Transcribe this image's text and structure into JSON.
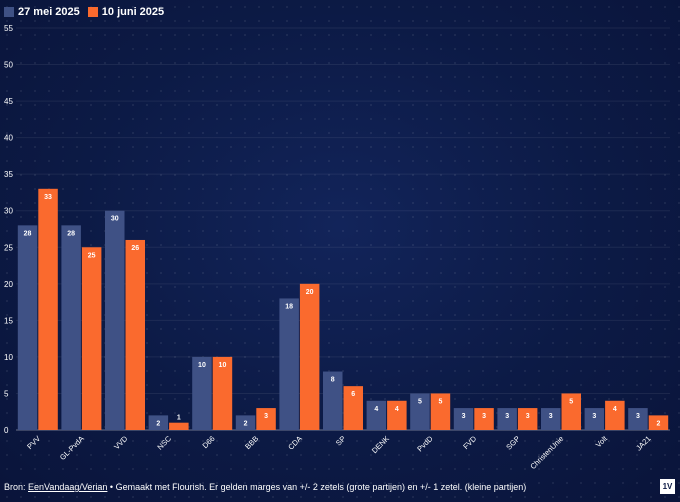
{
  "chart_data": {
    "type": "bar",
    "title": "",
    "xlabel": "",
    "ylabel": "",
    "ylim": [
      0,
      55
    ],
    "yticks": [
      0,
      5,
      10,
      15,
      20,
      25,
      30,
      35,
      40,
      45,
      50,
      55
    ],
    "categories": [
      "PVV",
      "GL-PvdA",
      "VVD",
      "NSC",
      "D66",
      "BBB",
      "CDA",
      "SP",
      "DENK",
      "PvdD",
      "FVD",
      "SGP",
      "ChristenUnie",
      "Volt",
      "JA21"
    ],
    "series": [
      {
        "name": "27 mei 2025",
        "color": "#3f5185",
        "values": [
          28,
          28,
          30,
          2,
          10,
          2,
          18,
          8,
          4,
          5,
          3,
          3,
          3,
          3,
          3
        ]
      },
      {
        "name": "10 juni 2025",
        "color": "#fa6a2e",
        "values": [
          33,
          25,
          26,
          1,
          10,
          3,
          20,
          6,
          4,
          5,
          3,
          3,
          5,
          4,
          2
        ]
      }
    ],
    "legend_position": "top-left"
  },
  "footer": {
    "prefix": "Bron: ",
    "link": "EenVandaag/Verian",
    "suffix": " • Gemaakt met Flourish. Er gelden marges van +/- 2 zetels (grote partijen) en +/- 1 zetel. (kleine partijen)"
  },
  "logo": {
    "text": "1V"
  }
}
